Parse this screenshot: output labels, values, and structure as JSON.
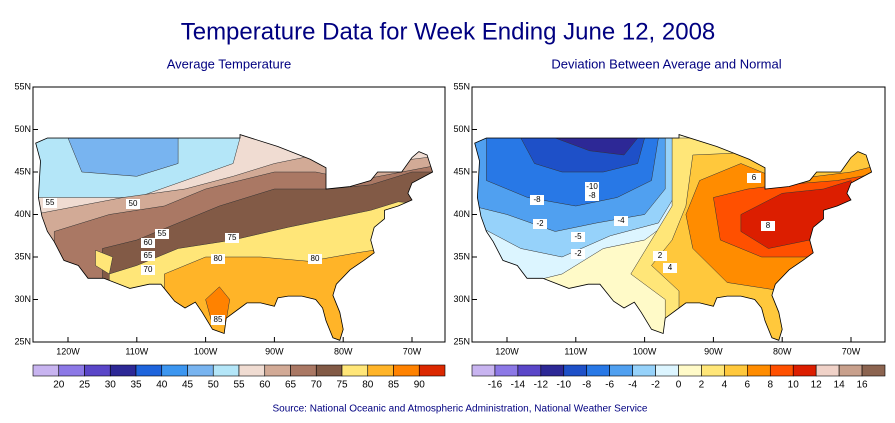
{
  "title": "Temperature Data for Week Ending June 12, 2008",
  "source": "Source:  National Oceanic and Atmospheric Administration, National Weather Service",
  "panels": [
    {
      "subtitle": "Average Temperature",
      "lat_labels": [
        "55N",
        "50N",
        "45N",
        "40N",
        "35N",
        "30N",
        "25N"
      ],
      "lon_labels": [
        "120W",
        "110W",
        "100W",
        "90W",
        "80W",
        "70W"
      ],
      "colorbar_labels": [
        "20",
        "25",
        "30",
        "35",
        "40",
        "45",
        "50",
        "55",
        "60",
        "65",
        "70",
        "75",
        "80",
        "85",
        "90"
      ],
      "colorbar_colors": [
        "#c8b4f0",
        "#8c78e6",
        "#5a46c8",
        "#2d2896",
        "#1e64dc",
        "#3c96f0",
        "#78b4f0",
        "#b4e6f8",
        "#f0dcd2",
        "#d2aa96",
        "#aa7864",
        "#825a46",
        "#ffe678",
        "#ffb428",
        "#ff8200",
        "#dc2800"
      ],
      "contour_labels": [
        "55",
        "50",
        "55",
        "60",
        "65",
        "70",
        "75",
        "80",
        "80",
        "85"
      ]
    },
    {
      "subtitle": "Deviation Between Average and Normal",
      "lat_labels": [
        "55N",
        "50N",
        "45N",
        "40N",
        "35N",
        "30N",
        "25N"
      ],
      "lon_labels": [
        "120W",
        "110W",
        "100W",
        "90W",
        "80W",
        "70W"
      ],
      "colorbar_labels": [
        "-16",
        "-14",
        "-12",
        "-10",
        "-8",
        "-6",
        "-4",
        "-2",
        "0",
        "2",
        "4",
        "6",
        "8",
        "10",
        "12",
        "14",
        "16"
      ],
      "colorbar_colors": [
        "#c8b4f0",
        "#8c78e6",
        "#5a46c8",
        "#2d2896",
        "#1e50c8",
        "#2878e6",
        "#50a0f0",
        "#96d2fa",
        "#dcf5ff",
        "#fffac8",
        "#ffe678",
        "#ffc83c",
        "#ff8c00",
        "#ff5000",
        "#dc1e00",
        "#f0d2c8",
        "#c8a08c",
        "#8c6450"
      ],
      "contour_labels": [
        "-8",
        "-10",
        "-8",
        "-4",
        "-2",
        "-5",
        "-2",
        "2",
        "4",
        "6",
        "8"
      ]
    }
  ]
}
